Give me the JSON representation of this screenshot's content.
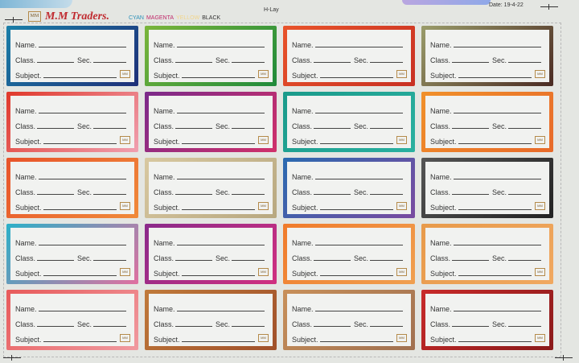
{
  "header": {
    "brand": "M.M Traders.",
    "logo_text": "MM",
    "inks": [
      {
        "label": "CYAN",
        "color": "#2a8fb8"
      },
      {
        "label": "MAGENTA",
        "color": "#c0296a"
      },
      {
        "label": "YELLOW",
        "color": "#f2d58a"
      },
      {
        "label": "BLACK",
        "color": "#333333"
      }
    ],
    "layout_name": "H-Lay",
    "date": "Date: 19-4-22"
  },
  "label_fields": {
    "name": "Name.",
    "class": "Class.",
    "sec": "Sec.",
    "subject": "Subject."
  },
  "labels": [
    {
      "border": "linear-gradient(135deg,#1a7fa8,#1e2f78)"
    },
    {
      "border": "linear-gradient(135deg,#7ab53a,#1f8a3a)"
    },
    {
      "border": "linear-gradient(135deg,#e8532a,#c83022)"
    },
    {
      "border": "linear-gradient(135deg,#9a9c6a,#4a2a22)"
    },
    {
      "border": "linear-gradient(135deg,#e0382a,#f0a0b0)"
    },
    {
      "border": "linear-gradient(135deg,#7a2a8a,#d0306a)"
    },
    {
      "border": "linear-gradient(135deg,#1a9a8a,#2ab0a0)"
    },
    {
      "border": "linear-gradient(135deg,#f0902a,#e86a2a)"
    },
    {
      "border": "linear-gradient(135deg,#e8532a,#f08a3a)"
    },
    {
      "border": "linear-gradient(135deg,#d8c8a0,#b8a880)"
    },
    {
      "border": "linear-gradient(135deg,#2a6ab0,#7a4aa0)"
    },
    {
      "border": "linear-gradient(135deg,#555555,#222222)"
    },
    {
      "border": "linear-gradient(135deg,#2ab0c8,#e070a0)"
    },
    {
      "border": "linear-gradient(135deg,#8a2a8a,#d03080)"
    },
    {
      "border": "linear-gradient(135deg,#f07a2a,#f0a050)"
    },
    {
      "border": "linear-gradient(135deg,#e89a4a,#f0a860)"
    },
    {
      "border": "linear-gradient(135deg,#e85a5a,#f09aa0)"
    },
    {
      "border": "linear-gradient(135deg,#c07a3a,#a0502a)"
    },
    {
      "border": "linear-gradient(135deg,#c8905a,#a07050)"
    },
    {
      "border": "linear-gradient(135deg,#c82a2a,#8a1a1a)"
    }
  ]
}
